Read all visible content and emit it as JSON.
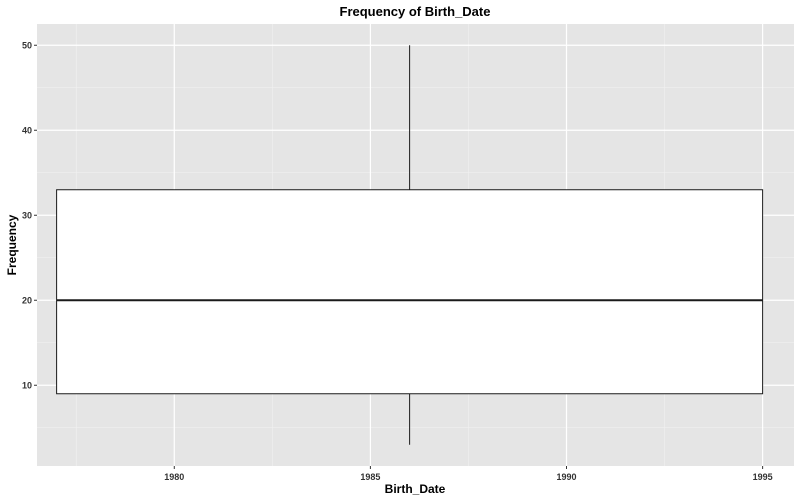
{
  "chart_data": {
    "type": "boxplot",
    "title": "Frequency of Birth_Date",
    "xlabel": "Birth_Date",
    "ylabel": "Frequency",
    "xlim": [
      1976.5,
      1995.8
    ],
    "ylim": [
      0.5,
      52.5
    ],
    "x_ticks": [
      1980,
      1985,
      1990,
      1995
    ],
    "x_tick_labels": [
      "1980",
      "1985",
      "1990",
      "1995"
    ],
    "y_ticks": [
      10,
      20,
      30,
      40,
      50
    ],
    "y_tick_labels": [
      "10",
      "20",
      "30",
      "40",
      "50"
    ],
    "grid": true,
    "legend": "none",
    "box": {
      "x_start": 1977,
      "x_end": 1995,
      "x_center": 1986,
      "min": 3,
      "q1": 9,
      "median": 20,
      "q3": 33,
      "max": 50
    },
    "colors": {
      "panel_background": "#e5e5e5",
      "grid_major": "#ffffff",
      "grid_minor": "#f2f2f2",
      "box_fill": "#ffffff",
      "box_stroke": "#1a1a1a"
    }
  }
}
